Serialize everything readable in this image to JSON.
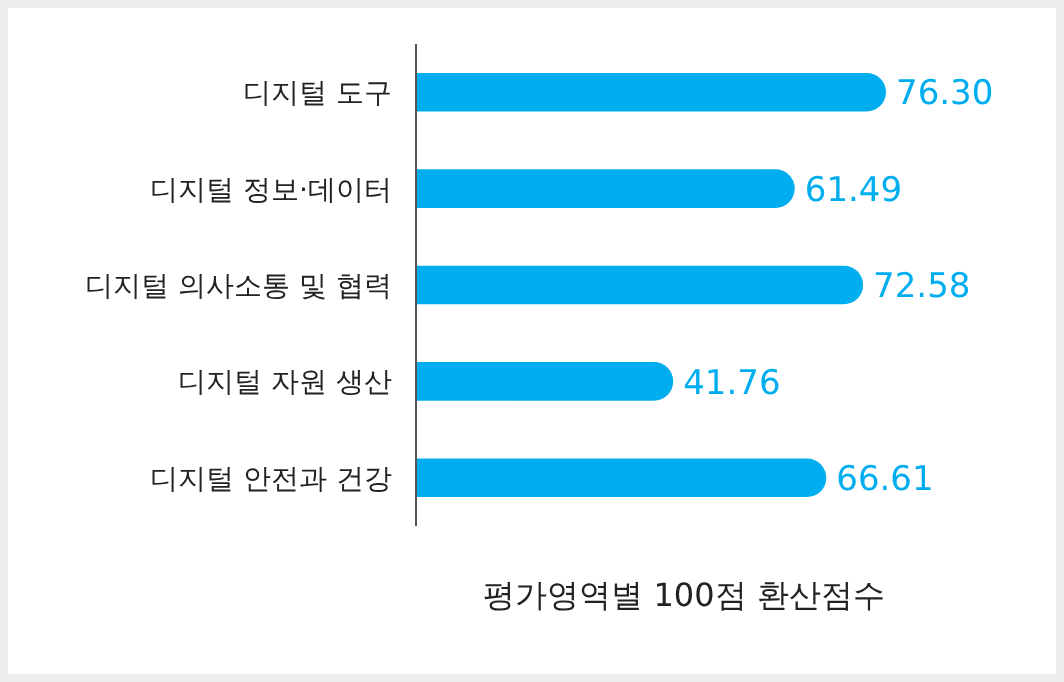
{
  "chart_data": {
    "type": "bar",
    "orientation": "horizontal",
    "categories": [
      "디지털 도구",
      "디지털 정보·데이터",
      "디지털 의사소통 및 협력",
      "디지털 자원 생산",
      "디지털 안전과 건강"
    ],
    "values": [
      76.3,
      61.49,
      72.58,
      41.76,
      66.61
    ],
    "value_labels": [
      "76.30",
      "61.49",
      "72.58",
      "41.76",
      "66.61"
    ],
    "color": "#00aeef",
    "xlabel": "평가영역별 100점 환산점수",
    "tick_labels": "y"
  }
}
